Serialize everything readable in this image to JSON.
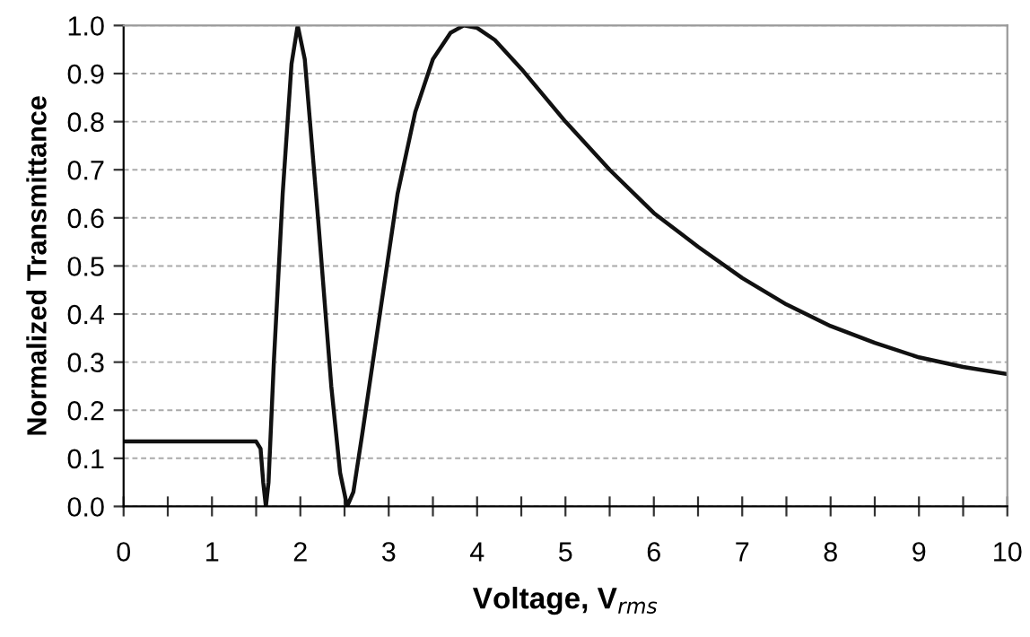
{
  "chart_data": {
    "type": "line",
    "xlabel": "Voltage, V$_{rms}$",
    "ylabel": "Normalized Transmittance",
    "series": [
      {
        "color": "#111111",
        "x": [
          0,
          0.5,
          1.0,
          1.5,
          1.55,
          1.58,
          1.61,
          1.64,
          1.7,
          1.8,
          1.9,
          1.97,
          2.05,
          2.2,
          2.35,
          2.45,
          2.53,
          2.6,
          2.7,
          2.9,
          3.1,
          3.3,
          3.5,
          3.7,
          3.85,
          4.0,
          4.2,
          4.5,
          5.0,
          5.5,
          6.0,
          6.5,
          7.0,
          7.5,
          8.0,
          8.5,
          9.0,
          9.5,
          10.0
        ],
        "values": [
          0.135,
          0.135,
          0.135,
          0.135,
          0.12,
          0.05,
          0.0,
          0.05,
          0.3,
          0.65,
          0.92,
          1.0,
          0.93,
          0.6,
          0.25,
          0.07,
          0.0,
          0.03,
          0.15,
          0.4,
          0.65,
          0.82,
          0.93,
          0.985,
          1.0,
          0.995,
          0.97,
          0.91,
          0.8,
          0.7,
          0.61,
          0.54,
          0.475,
          0.42,
          0.375,
          0.34,
          0.31,
          0.29,
          0.275
        ]
      }
    ],
    "xlim": [
      0,
      10
    ],
    "xticks": [
      0,
      {
        "value": 0.5,
        "label": null
      },
      1,
      {
        "value": 1.5,
        "label": null
      },
      2,
      {
        "value": 2.5,
        "label": null
      },
      3,
      {
        "value": 3.5,
        "label": null
      },
      4,
      {
        "value": 4.5,
        "label": null
      },
      5,
      {
        "value": 5.5,
        "label": null
      },
      6,
      {
        "value": 6.5,
        "label": null
      },
      7,
      {
        "value": 7.5,
        "label": null
      },
      8,
      {
        "value": 8.5,
        "label": null
      },
      9,
      {
        "value": 9.5,
        "label": null
      },
      10
    ],
    "ylim": [
      0,
      1.0
    ],
    "yticks": [
      {
        "value": 0,
        "label": "0.0"
      },
      0.1,
      0.2,
      0.3,
      0.4,
      0.5,
      0.6,
      0.7,
      0.8,
      0.9,
      {
        "value": 1.0,
        "label": "1.0"
      }
    ],
    "grid": "y",
    "line_style": "solid",
    "marker": "none"
  }
}
